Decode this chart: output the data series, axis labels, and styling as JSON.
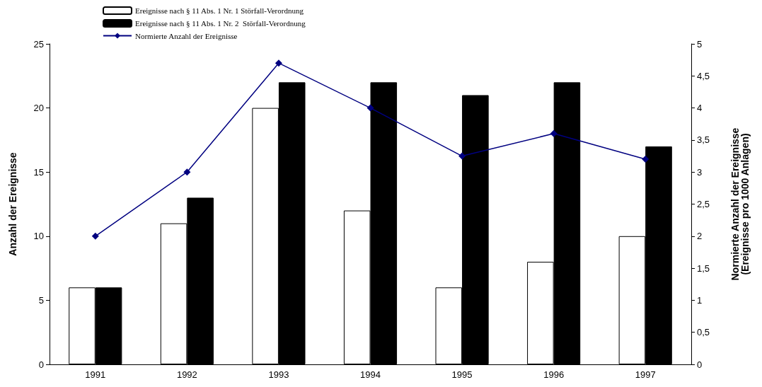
{
  "chart_data": {
    "type": "bar",
    "categories": [
      "1991",
      "1992",
      "1993",
      "1994",
      "1995",
      "1996",
      "1997"
    ],
    "ylabel": "Anzahl der Ereignisse",
    "y2label": "Normierte Anzahl der Ereignisse\n(Ereignisse pro 1000 Anlagen)",
    "series": [
      {
        "name": "Ereignisse nach § 11 Abs. 1 Nr. 1 Störfall-Verordnung",
        "color": "#ffffff",
        "values": [
          6,
          11,
          20,
          12,
          6,
          8,
          10
        ]
      },
      {
        "name": "Ereignisse nach § 11 Abs. 1 Nr. 2  Störfall-Verordnung",
        "color": "#000000",
        "values": [
          6,
          13,
          22,
          22,
          21,
          22,
          17
        ]
      },
      {
        "name": "Normierte Anzahl der Ereignisse",
        "type": "line",
        "axis": "y2",
        "color": "#000080",
        "marker": "diamond",
        "values": [
          2,
          3,
          4.7,
          4,
          3.25,
          3.6,
          3.2
        ]
      }
    ],
    "ylim": [
      0,
      25
    ],
    "yticks": [
      0,
      5,
      10,
      15,
      20,
      25
    ],
    "y2lim": [
      0,
      5
    ],
    "y2ticks": [
      0,
      {
        "value": 0.5,
        "label": "0,5"
      },
      1,
      {
        "value": 1.5,
        "label": "1,5"
      },
      2,
      {
        "value": 2.5,
        "label": "2,5"
      },
      3,
      {
        "value": 3.5,
        "label": "3,5"
      },
      4,
      {
        "value": 4.5,
        "label": "4,5"
      },
      5
    ],
    "grid": false,
    "legend": "top left"
  }
}
